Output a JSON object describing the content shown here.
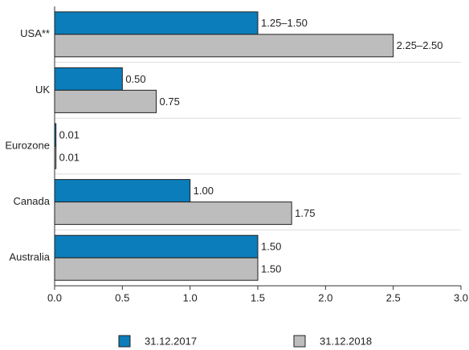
{
  "chart_data": {
    "type": "hbar",
    "categories": [
      "USA**",
      "UK",
      "Eurozone",
      "Canada",
      "Australia"
    ],
    "series": [
      {
        "name": "31.12.2017",
        "color": "#0a7dba",
        "values": [
          1.5,
          0.5,
          0.01,
          1.0,
          1.5
        ],
        "value_labels": [
          "1.25–1.50",
          "0.50",
          "0.01",
          "1.00",
          "1.50"
        ]
      },
      {
        "name": "31.12.2018",
        "color": "#bdbdbd",
        "values": [
          2.5,
          0.75,
          0.01,
          1.75,
          1.5
        ],
        "value_labels": [
          "2.25–2.50",
          "0.75",
          "0.01",
          "1.75",
          "1.50"
        ]
      }
    ],
    "xlim": [
      0,
      3
    ],
    "xticks": [
      {
        "value": 0,
        "label": "0.0"
      },
      0.5,
      {
        "value": 1,
        "label": "1.0"
      },
      1.5,
      {
        "value": 2,
        "label": "2.0"
      },
      2.5,
      {
        "value": 3,
        "label": "3.0"
      }
    ],
    "legend": "bottom"
  }
}
